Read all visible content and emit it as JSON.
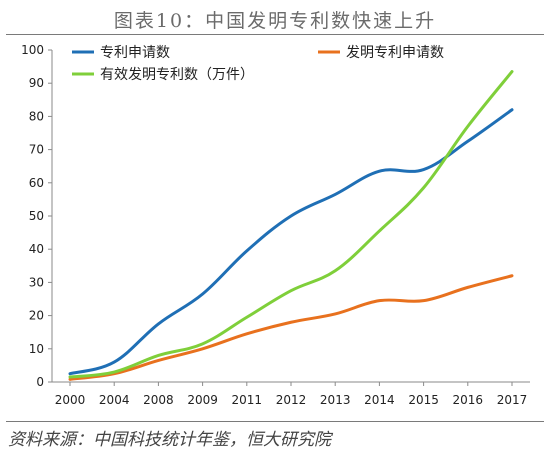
{
  "title": "图表10：中国发明专利数快速上升",
  "source": "资料来源：中国科技统计年鉴，恒大研究院",
  "chart_data": {
    "type": "line",
    "categories": [
      "2000",
      "2004",
      "2008",
      "2009",
      "2011",
      "2012",
      "2013",
      "2014",
      "2015",
      "2016",
      "2017"
    ],
    "ylim": [
      0,
      100
    ],
    "yticks": [
      0,
      10,
      20,
      30,
      40,
      50,
      60,
      70,
      80,
      90,
      100
    ],
    "grid": false,
    "legend": "top-left",
    "series": [
      {
        "name": "专利申请数",
        "color": "#1f6fb5",
        "values": [
          2.5,
          6,
          17.5,
          26.5,
          39.5,
          50,
          56.5,
          63.5,
          64,
          72.5,
          82
        ]
      },
      {
        "name": "发明专利申请数",
        "color": "#e8711e",
        "values": [
          0.8,
          2.5,
          6.5,
          10,
          14.5,
          18,
          20.5,
          24.5,
          24.5,
          28.5,
          32
        ]
      },
      {
        "name": "有效发明专利数（万件）",
        "color": "#7fcf3a",
        "values": [
          1.5,
          3,
          8,
          11.5,
          19.5,
          27.5,
          33.5,
          45.5,
          58.5,
          77,
          93.5
        ]
      }
    ]
  }
}
